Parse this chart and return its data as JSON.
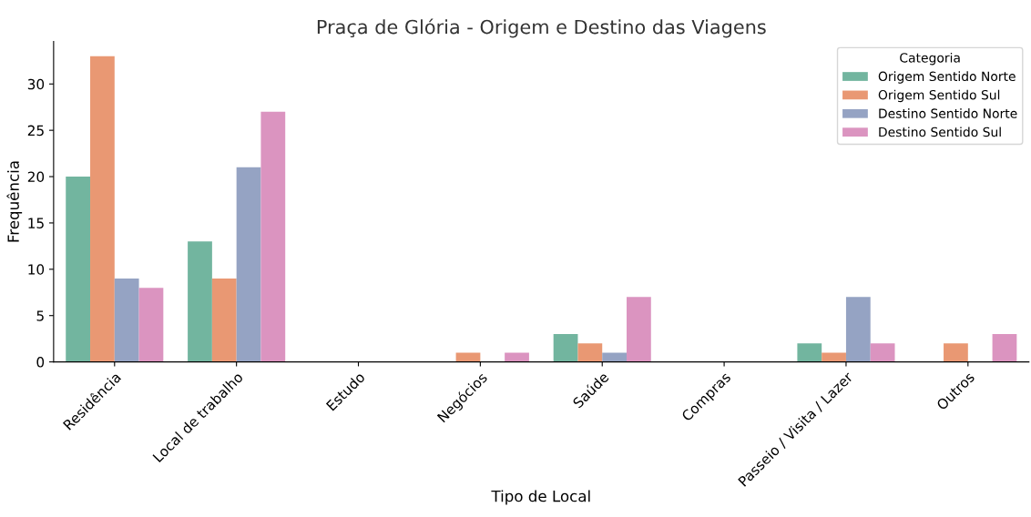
{
  "chart_data": {
    "type": "bar",
    "title": "Praça de Glória - Origem e Destino das Viagens",
    "xlabel": "Tipo de Local",
    "ylabel": "Frequência",
    "legend_title": "Categoria",
    "categories": [
      "Residência",
      "Local de trabalho",
      "Estudo",
      "Negócios",
      "Saúde",
      "Compras",
      "Passeio / Visita / Lazer",
      "Outros"
    ],
    "series": [
      {
        "name": "Origem Sentido Norte",
        "color": "#72b59f",
        "values": [
          20,
          13,
          0,
          0,
          3,
          0,
          2,
          0
        ]
      },
      {
        "name": "Origem Sentido Sul",
        "color": "#e99873",
        "values": [
          33,
          9,
          0,
          1,
          2,
          0,
          1,
          2
        ]
      },
      {
        "name": "Destino Sentido Norte",
        "color": "#95a3c3",
        "values": [
          9,
          21,
          0,
          0,
          1,
          0,
          7,
          0
        ]
      },
      {
        "name": "Destino Sentido Sul",
        "color": "#db94c0",
        "values": [
          8,
          27,
          0,
          1,
          7,
          0,
          2,
          3
        ]
      }
    ],
    "ylim": [
      0,
      34.6
    ],
    "yticks": [
      0,
      5,
      10,
      15,
      20,
      25,
      30
    ],
    "grid": false,
    "legend": "top right"
  }
}
